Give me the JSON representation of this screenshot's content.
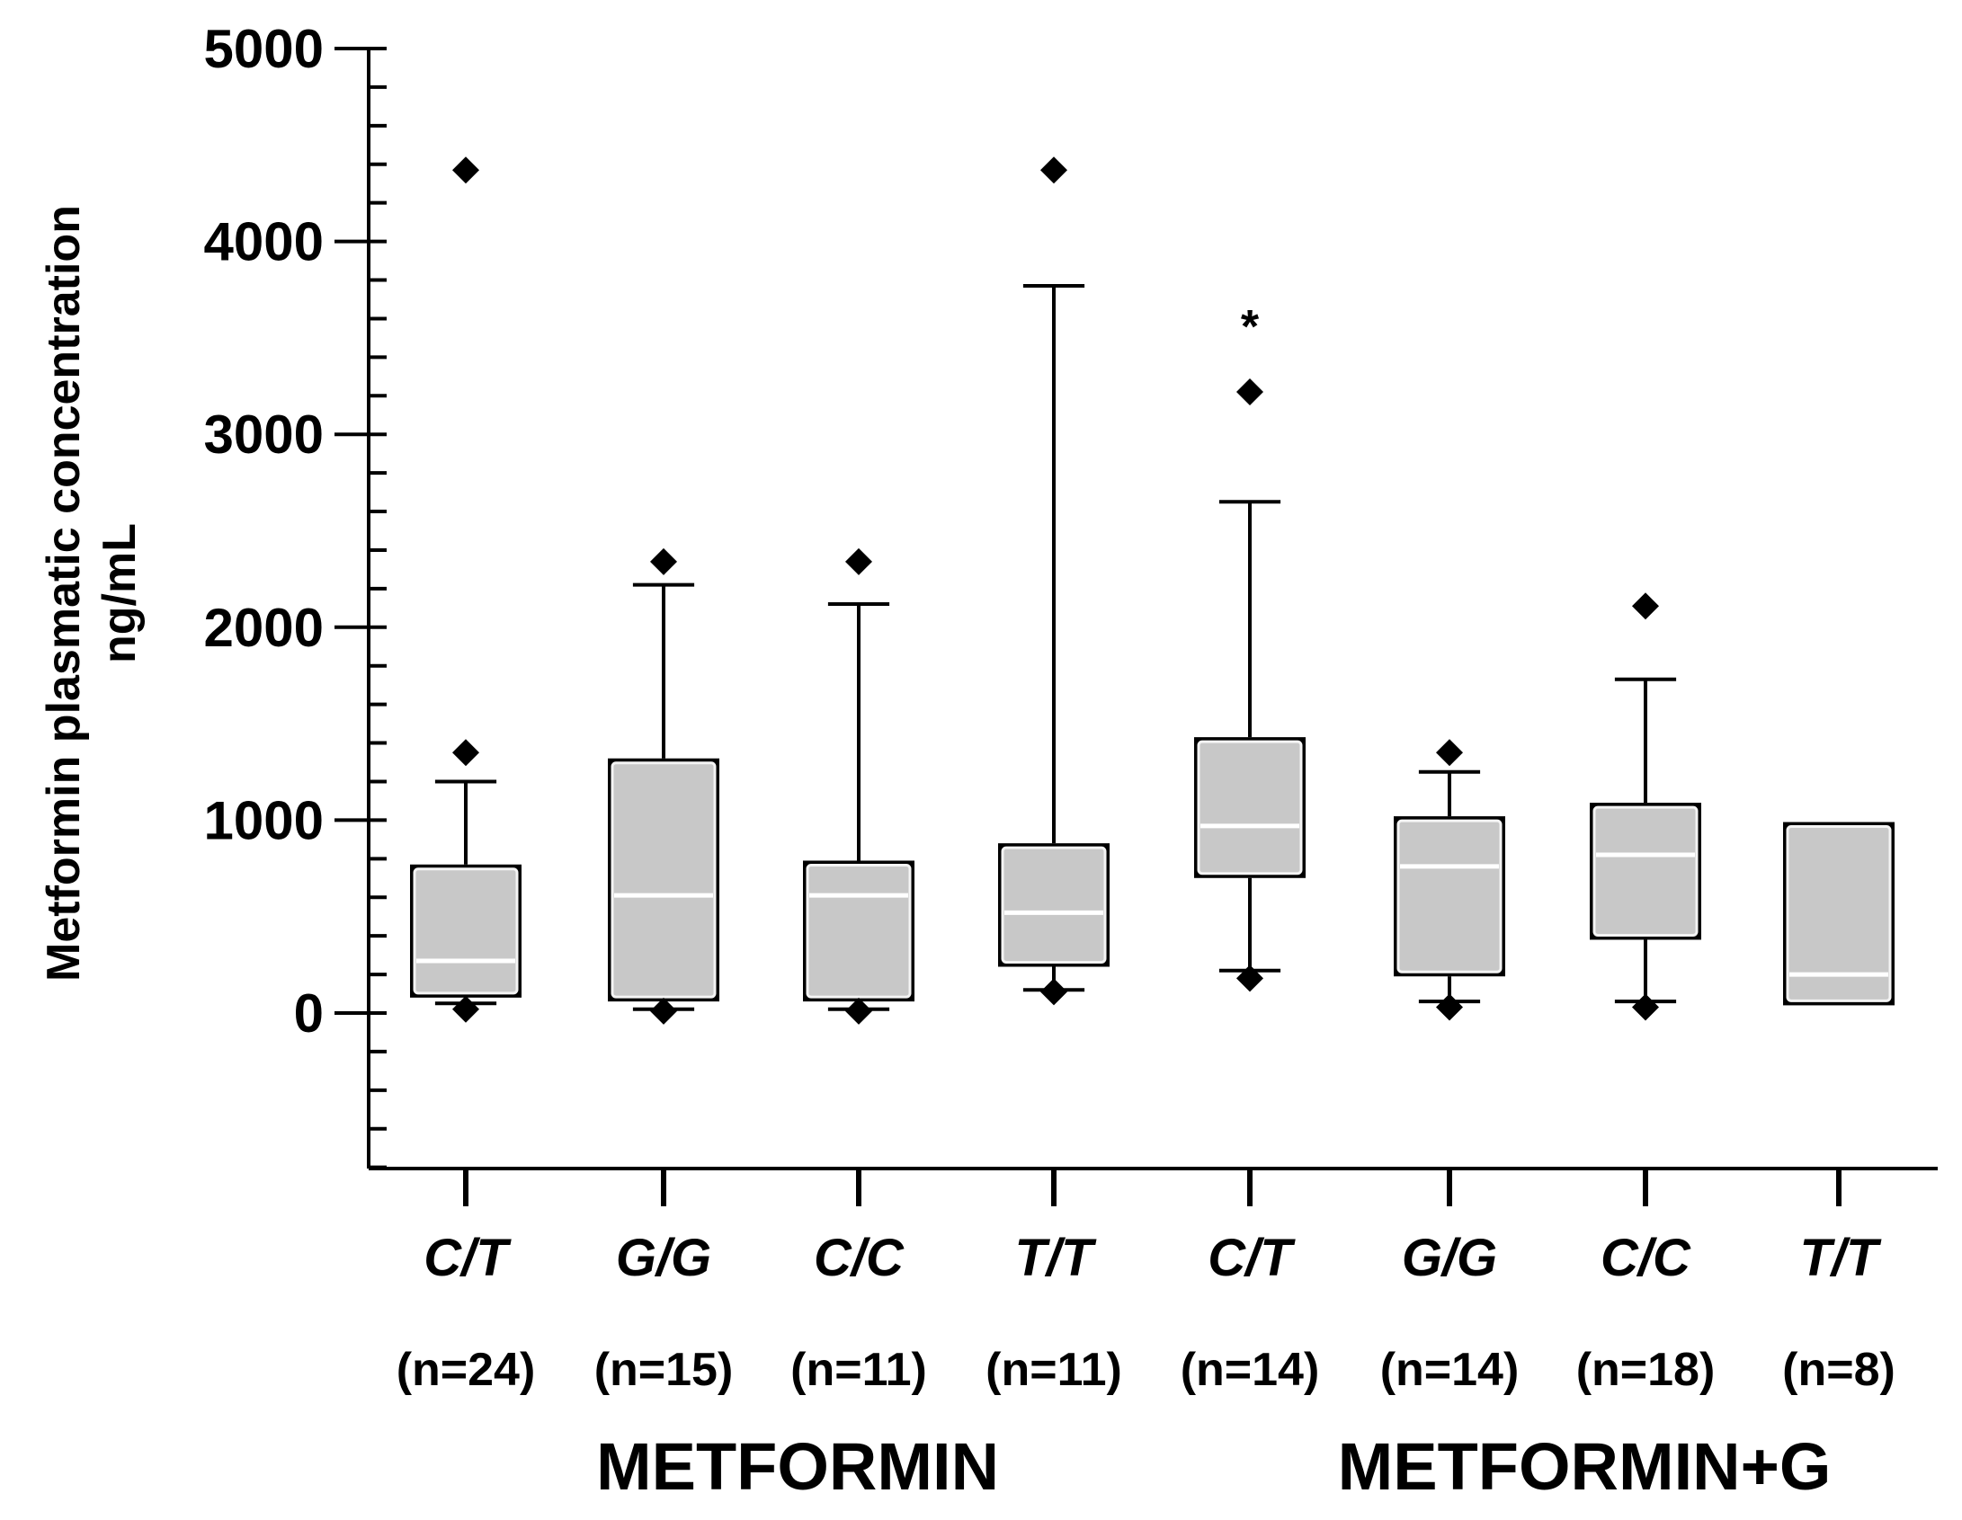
{
  "chart_data": {
    "type": "box",
    "ylabel_lines": [
      "Metformin plasmatic concentration",
      "ng/mL"
    ],
    "ylim": [
      -800,
      5000
    ],
    "yticks": [
      0,
      1000,
      2000,
      3000,
      4000,
      5000
    ],
    "ytick_labels": [
      "0",
      "1000",
      "2000",
      "3000",
      "4000",
      "5000"
    ],
    "groups": [
      {
        "name": "METFORMIN",
        "members": [
          0,
          1,
          2,
          3
        ]
      },
      {
        "name": "METFORMIN+G",
        "members": [
          4,
          5,
          6,
          7
        ]
      }
    ],
    "boxes": [
      {
        "category": "C/T",
        "n_label": "(n=24)",
        "q1": 80,
        "median": 270,
        "q3": 770,
        "whisker_low": 50,
        "whisker_high": 1200,
        "outliers": [
          20,
          1350,
          4370
        ]
      },
      {
        "category": "G/G",
        "n_label": "(n=15)",
        "q1": 60,
        "median": 610,
        "q3": 1320,
        "whisker_low": 20,
        "whisker_high": 2220,
        "outliers": [
          10,
          2340
        ]
      },
      {
        "category": "C/C",
        "n_label": "(n=11)",
        "q1": 60,
        "median": 610,
        "q3": 790,
        "whisker_low": 20,
        "whisker_high": 2120,
        "outliers": [
          10,
          2340
        ]
      },
      {
        "category": "T/T",
        "n_label": "(n=11)",
        "q1": 240,
        "median": 520,
        "q3": 880,
        "whisker_low": 120,
        "whisker_high": 3770,
        "outliers": [
          110,
          4370
        ]
      },
      {
        "category": "C/T",
        "n_label": "(n=14)",
        "q1": 700,
        "median": 970,
        "q3": 1430,
        "whisker_low": 220,
        "whisker_high": 2650,
        "outliers": [
          180,
          3220
        ],
        "annotation": "*"
      },
      {
        "category": "G/G",
        "n_label": "(n=14)",
        "q1": 190,
        "median": 760,
        "q3": 1020,
        "whisker_low": 60,
        "whisker_high": 1250,
        "outliers": [
          30,
          1350
        ]
      },
      {
        "category": "C/C",
        "n_label": "(n=18)",
        "q1": 380,
        "median": 820,
        "q3": 1090,
        "whisker_low": 60,
        "whisker_high": 1730,
        "outliers": [
          30,
          2110
        ]
      },
      {
        "category": "T/T",
        "n_label": "(n=8)",
        "q1": 40,
        "median": 200,
        "q3": 990,
        "whisker_low": null,
        "whisker_high": null,
        "outliers": []
      }
    ],
    "colors": {
      "box_fill": "#c8c8c8",
      "stroke": "#000000",
      "median": "#ffffff",
      "marker": "#000000"
    }
  }
}
